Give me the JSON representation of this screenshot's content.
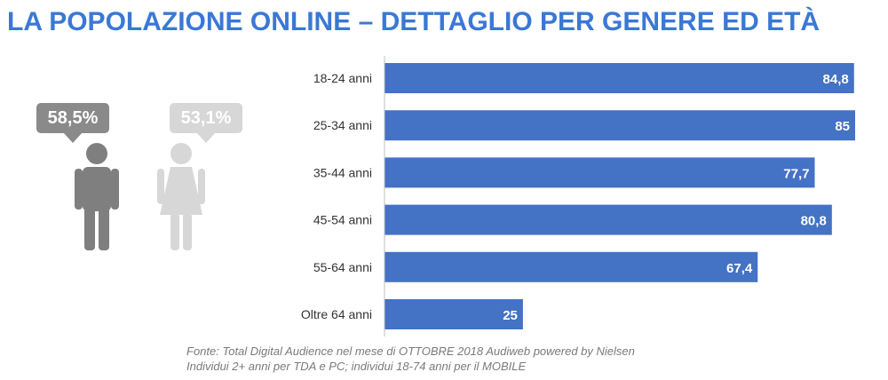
{
  "title": "LA POPOLAZIONE ONLINE – DETTAGLIO PER GENERE ED ETÀ",
  "gender": {
    "male": {
      "value": "58,5%",
      "icon": "male-person-icon",
      "color": "#8a8a8a"
    },
    "female": {
      "value": "53,1%",
      "icon": "female-person-icon",
      "color": "#d7d7d7"
    }
  },
  "chart_data": {
    "type": "bar",
    "orientation": "horizontal",
    "categories": [
      "18-24 anni",
      "25-34 anni",
      "35-44 anni",
      "45-54 anni",
      "55-64 anni",
      "Oltre 64 anni"
    ],
    "values": [
      84.8,
      85,
      77.7,
      80.8,
      67.4,
      25
    ],
    "value_labels": [
      "84,8",
      "85",
      "77,7",
      "80,8",
      "67,4",
      "25"
    ],
    "xlim": [
      0,
      85
    ],
    "bar_color": "#4472c4",
    "grid": false,
    "legend": "none"
  },
  "source": {
    "line1": "Fonte: Total Digital Audience nel mese di OTTOBRE 2018 Audiweb powered by Nielsen",
    "line2": "Individui 2+ anni per TDA e PC; individui 18-74 anni per il MOBILE"
  }
}
